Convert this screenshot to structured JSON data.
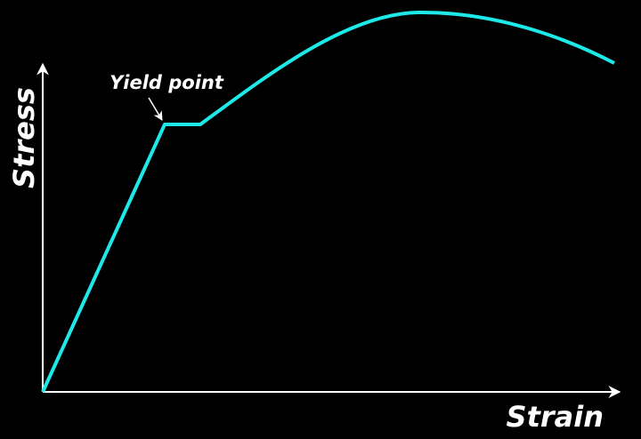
{
  "axes": {
    "x_label": "Strain",
    "y_label": "Stress"
  },
  "annotations": [
    {
      "label": "Yield point"
    }
  ]
}
